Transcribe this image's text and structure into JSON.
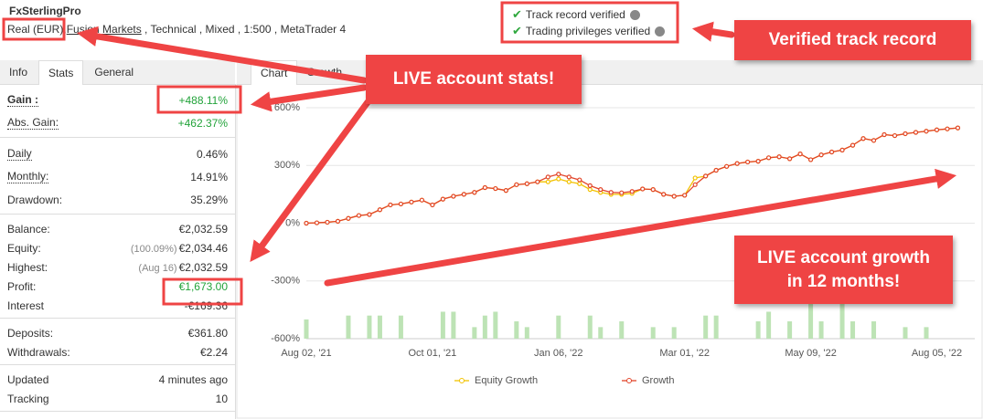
{
  "header": {
    "title": "FxSterlingPro",
    "account_type": "Real (EUR),",
    "broker": "Fusion Markets",
    "details": " , Technical , Mixed , 1:500 , MetaTrader 4"
  },
  "verification": [
    "Track record verified",
    "Trading privileges verified"
  ],
  "left_tabs": [
    "Info",
    "Stats",
    "General"
  ],
  "left_active_tab": 1,
  "stats": [
    [
      {
        "label": "Gain :",
        "value": "+488.11%",
        "color": "#22a33a",
        "bold": true,
        "dotted": true
      },
      {
        "label": "Abs. Gain:",
        "value": "+462.37%",
        "color": "#22a33a",
        "dotted": true
      }
    ],
    [
      {
        "label": "Daily",
        "value": "0.46%",
        "dotted": true
      },
      {
        "label": "Monthly:",
        "value": "14.91%",
        "dotted": true
      },
      {
        "label": "Drawdown:",
        "value": "35.29%"
      }
    ],
    [
      {
        "label": "Balance:",
        "value": "€2,032.59"
      },
      {
        "label": "Equity:",
        "note": "(100.09%)",
        "value": "€2,034.46"
      },
      {
        "label": "Highest:",
        "note": "(Aug 16)",
        "value": "€2,032.59"
      },
      {
        "label": "Profit:",
        "value": "€1,673.00",
        "color": "#22a33a"
      },
      {
        "label": "Interest",
        "value": "-€169.36"
      }
    ],
    [
      {
        "label": "Deposits:",
        "value": "€361.80"
      },
      {
        "label": "Withdrawals:",
        "value": "€2.24"
      }
    ],
    [
      {
        "label": "Updated",
        "value": "4 minutes ago"
      },
      {
        "label": "Tracking",
        "value": "10"
      }
    ]
  ],
  "chart_tabs": [
    "Chart",
    "Growth"
  ],
  "chart_active_tab": 0,
  "chart_data": {
    "type": "line",
    "categories": [
      "Aug 02, '21",
      null,
      null,
      null,
      null,
      null,
      null,
      null,
      null,
      null,
      null,
      null,
      "Oct 01, '21",
      null,
      null,
      null,
      null,
      null,
      null,
      null,
      null,
      null,
      null,
      null,
      "Jan 06, '22",
      null,
      null,
      null,
      null,
      null,
      null,
      null,
      null,
      null,
      null,
      null,
      "Mar 01, '22",
      null,
      null,
      null,
      null,
      null,
      null,
      null,
      null,
      null,
      null,
      null,
      "May 09, '22",
      null,
      null,
      null,
      null,
      null,
      null,
      null,
      null,
      null,
      null,
      null,
      "Aug 05, '22",
      null,
      null
    ],
    "series": [
      {
        "name": "Equity Growth",
        "color": "#f2c200",
        "values": [
          0,
          2,
          5,
          10,
          25,
          40,
          45,
          70,
          95,
          100,
          110,
          120,
          95,
          125,
          140,
          150,
          160,
          185,
          180,
          170,
          200,
          205,
          215,
          215,
          230,
          215,
          205,
          175,
          160,
          150,
          150,
          155,
          178,
          175,
          150,
          140,
          145,
          235,
          245,
          275,
          295,
          310,
          318,
          322,
          340,
          345,
          335,
          360,
          330,
          355,
          370,
          380,
          405,
          440,
          430,
          460,
          455,
          465,
          472,
          478,
          485,
          490,
          495
        ]
      },
      {
        "name": "Growth",
        "color": "#e2452a",
        "values": [
          0,
          2,
          5,
          10,
          25,
          40,
          45,
          70,
          95,
          100,
          110,
          120,
          95,
          125,
          140,
          150,
          160,
          185,
          180,
          170,
          200,
          205,
          215,
          240,
          255,
          240,
          225,
          195,
          175,
          160,
          158,
          165,
          178,
          175,
          150,
          140,
          145,
          200,
          245,
          275,
          295,
          310,
          318,
          322,
          340,
          345,
          335,
          360,
          330,
          355,
          370,
          380,
          405,
          440,
          430,
          460,
          455,
          465,
          472,
          478,
          485,
          490,
          495
        ]
      }
    ],
    "bars": {
      "color": "#bde3b5",
      "values": [
        100,
        0,
        0,
        0,
        120,
        0,
        120,
        120,
        0,
        120,
        0,
        0,
        0,
        140,
        140,
        0,
        60,
        120,
        140,
        0,
        90,
        60,
        0,
        0,
        120,
        0,
        0,
        120,
        60,
        0,
        90,
        0,
        0,
        60,
        0,
        60,
        0,
        0,
        120,
        120,
        0,
        0,
        0,
        90,
        140,
        0,
        90,
        0,
        190,
        90,
        0,
        190,
        90,
        0,
        90,
        0,
        0,
        60,
        0,
        60,
        0,
        0,
        0
      ]
    },
    "ylim": [
      -600,
      600
    ],
    "yticks": [
      {
        "value": 600,
        "label": "600%"
      },
      {
        "value": 300,
        "label": "300%"
      },
      {
        "value": 0,
        "label": "0%"
      },
      {
        "value": -300,
        "label": "-300%"
      },
      {
        "value": -600,
        "label": "-600%"
      }
    ],
    "grid": true
  },
  "annotations": [
    [
      "Verified track record"
    ],
    [
      "LIVE account stats!"
    ],
    [
      "LIVE account growth",
      "in 12 months!"
    ]
  ]
}
